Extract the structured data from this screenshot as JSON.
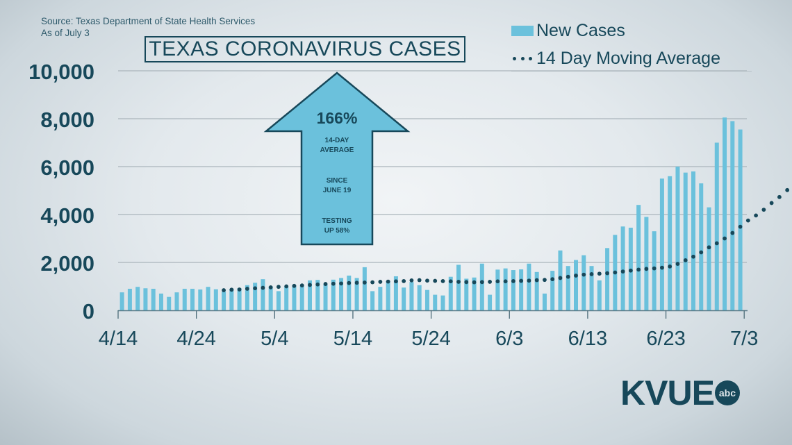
{
  "header": {
    "source": "Source: Texas Department of State Health Services",
    "as_of": "As of July 3",
    "title": "TEXAS CORONAVIRUS CASES"
  },
  "legend": {
    "new_cases": "New Cases",
    "moving_avg": "14 Day Moving Average"
  },
  "callout": {
    "percent": "166%",
    "line1": "14-DAY",
    "line2": "AVERAGE",
    "line3": "SINCE",
    "line4": "JUNE 19",
    "line5": "TESTING",
    "line6": "UP 58%"
  },
  "logo": {
    "station": "KVUE",
    "network": "abc"
  },
  "colors": {
    "bar": "#6bc1dc",
    "dots": "#17485a",
    "text": "#17485a",
    "grid": "#aab5bb"
  },
  "chart_data": {
    "type": "bar",
    "title": "TEXAS CORONAVIRUS CASES",
    "xlabel": "",
    "ylabel": "",
    "ylim": [
      0,
      10000
    ],
    "y_ticks": [
      "0",
      "2,000",
      "4,000",
      "6,000",
      "8,000",
      "10,000"
    ],
    "x_ticks": [
      "4/14",
      "4/24",
      "5/4",
      "5/14",
      "5/24",
      "6/3",
      "6/13",
      "6/23",
      "7/3"
    ],
    "grid": true,
    "legend_position": "top-right",
    "series": [
      {
        "name": "New Cases",
        "type": "bar",
        "values": [
          750,
          900,
          980,
          920,
          900,
          700,
          560,
          750,
          900,
          900,
          870,
          980,
          880,
          780,
          900,
          920,
          1050,
          1150,
          1300,
          1000,
          800,
          1000,
          1050,
          1030,
          1250,
          1270,
          1100,
          1280,
          1350,
          1450,
          1350,
          1800,
          800,
          980,
          1230,
          1420,
          950,
          1180,
          1050,
          850,
          650,
          620,
          1400,
          1900,
          1320,
          1370,
          1950,
          650,
          1700,
          1750,
          1680,
          1710,
          1950,
          1600,
          700,
          1650,
          2500,
          1850,
          2100,
          2300,
          1850,
          1250,
          2600,
          3150,
          3500,
          3450,
          4400,
          3900,
          3300,
          5500,
          5600,
          6000,
          5750,
          5800,
          5300,
          4300,
          7000,
          8050,
          7900,
          7550
        ]
      },
      {
        "name": "14 Day Moving Average",
        "type": "line-dotted",
        "start_index": 13,
        "values": [
          840,
          860,
          870,
          900,
          920,
          940,
          960,
          980,
          1000,
          1020,
          1040,
          1060,
          1080,
          1100,
          1110,
          1120,
          1140,
          1150,
          1160,
          1170,
          1190,
          1200,
          1210,
          1220,
          1250,
          1260,
          1240,
          1230,
          1220,
          1210,
          1190,
          1180,
          1170,
          1180,
          1190,
          1210,
          1210,
          1220,
          1230,
          1240,
          1260,
          1270,
          1300,
          1350,
          1400,
          1450,
          1490,
          1510,
          1530,
          1550,
          1580,
          1620,
          1660,
          1700,
          1730,
          1750,
          1780,
          1830,
          1940,
          2090,
          2240,
          2420,
          2630,
          2800,
          3000,
          3230,
          3490,
          3750,
          3960,
          4200,
          4480,
          4730,
          5020,
          5400
        ]
      }
    ]
  }
}
